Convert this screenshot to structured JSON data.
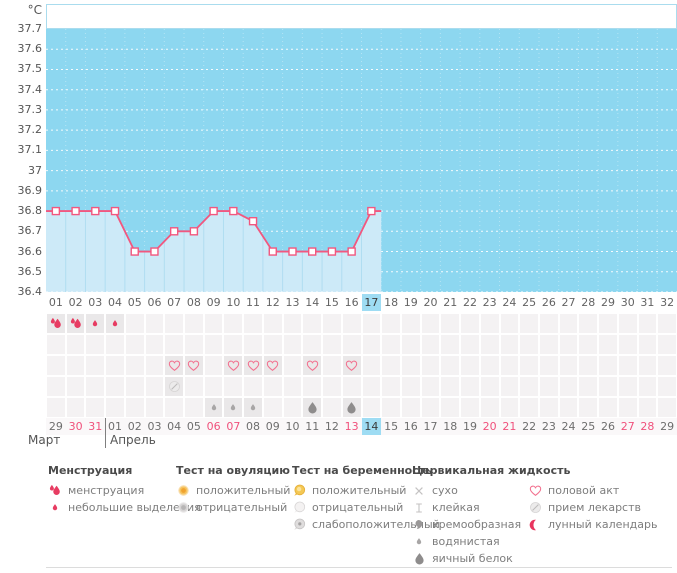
{
  "chart_data": {
    "type": "line",
    "title": "",
    "ylabel": "°C",
    "ylim": [
      36.4,
      37.7
    ],
    "y_ticks": [
      "37.7",
      "37.6",
      "37.5",
      "37.4",
      "37.3",
      "37.2",
      "37.1",
      "37",
      "36.9",
      "36.8",
      "36.7",
      "36.6",
      "36.5",
      "36.4"
    ],
    "x_days_total": 32,
    "cycle_days": [
      "01",
      "02",
      "03",
      "04",
      "05",
      "06",
      "07",
      "08",
      "09",
      "10",
      "11",
      "12",
      "13",
      "14",
      "15",
      "16",
      "17",
      "18",
      "19",
      "20",
      "21",
      "22",
      "23",
      "24",
      "25",
      "26",
      "27",
      "28",
      "29",
      "30",
      "31",
      "32"
    ],
    "today_cycle_day": 17,
    "grid": "dotted-white",
    "legend_position": "none",
    "series": [
      {
        "name": "basal-temperature",
        "x": [
          1,
          2,
          3,
          4,
          5,
          6,
          7,
          8,
          9,
          10,
          11,
          12,
          13,
          14,
          15,
          16,
          17
        ],
        "values": [
          36.8,
          36.8,
          36.8,
          36.8,
          36.6,
          36.6,
          36.7,
          36.7,
          36.8,
          36.8,
          36.75,
          36.6,
          36.6,
          36.6,
          36.6,
          36.6,
          36.8
        ]
      }
    ]
  },
  "colors": {
    "plot_bg": "#8dd7f0",
    "band_fill": "#ffffff",
    "band_border": "#aadcee",
    "area_fill": "#cdeaf8",
    "area_separator": "#b0ddf1",
    "line": "#f2577f",
    "marker_fill": "#ffffff",
    "highlight_day": "#9edcf3",
    "weekend_text": "#f0517c",
    "menses_red": "#e73c62",
    "heart_pink": "#f2718f",
    "moon_red": "#e8345e"
  },
  "icon_grid": {
    "rows": [
      {
        "name": "menstruation",
        "cells": {
          "1": "menses-heavy",
          "2": "menses-heavy",
          "3": "menses-light",
          "4": "menses-light"
        }
      },
      {
        "name": "tests",
        "cells": {}
      },
      {
        "name": "intercourse",
        "cells": {
          "7": "heart",
          "8": "heart",
          "10": "heart",
          "11": "heart",
          "12": "heart",
          "14": "heart",
          "16": "heart"
        }
      },
      {
        "name": "medication",
        "cells": {
          "7": "pill"
        }
      },
      {
        "name": "cervical-fluid",
        "cells": {
          "9": "fluid-watery",
          "10": "fluid-watery",
          "11": "fluid-watery",
          "14": "fluid-eggwhite",
          "16": "fluid-eggwhite"
        }
      }
    ]
  },
  "calendar": {
    "dates": [
      {
        "label": "29",
        "weekend": false,
        "today": false
      },
      {
        "label": "30",
        "weekend": true,
        "today": false
      },
      {
        "label": "31",
        "weekend": true,
        "today": false
      },
      {
        "label": "01",
        "weekend": false,
        "today": false
      },
      {
        "label": "02",
        "weekend": false,
        "today": false
      },
      {
        "label": "03",
        "weekend": false,
        "today": false
      },
      {
        "label": "04",
        "weekend": false,
        "today": false
      },
      {
        "label": "05",
        "weekend": false,
        "today": false
      },
      {
        "label": "06",
        "weekend": true,
        "today": false
      },
      {
        "label": "07",
        "weekend": true,
        "today": false
      },
      {
        "label": "08",
        "weekend": false,
        "today": false
      },
      {
        "label": "09",
        "weekend": false,
        "today": false
      },
      {
        "label": "10",
        "weekend": false,
        "today": false
      },
      {
        "label": "11",
        "weekend": false,
        "today": false
      },
      {
        "label": "12",
        "weekend": false,
        "today": false
      },
      {
        "label": "13",
        "weekend": true,
        "today": false
      },
      {
        "label": "14",
        "weekend": false,
        "today": true
      },
      {
        "label": "15",
        "weekend": false,
        "today": false
      },
      {
        "label": "16",
        "weekend": false,
        "today": false
      },
      {
        "label": "17",
        "weekend": false,
        "today": false
      },
      {
        "label": "18",
        "weekend": false,
        "today": false
      },
      {
        "label": "19",
        "weekend": false,
        "today": false
      },
      {
        "label": "20",
        "weekend": true,
        "today": false
      },
      {
        "label": "21",
        "weekend": true,
        "today": false
      },
      {
        "label": "22",
        "weekend": false,
        "today": false
      },
      {
        "label": "23",
        "weekend": false,
        "today": false
      },
      {
        "label": "24",
        "weekend": false,
        "today": false
      },
      {
        "label": "25",
        "weekend": false,
        "today": false
      },
      {
        "label": "26",
        "weekend": false,
        "today": false
      },
      {
        "label": "27",
        "weekend": true,
        "today": false
      },
      {
        "label": "28",
        "weekend": true,
        "today": false
      },
      {
        "label": "29",
        "weekend": false,
        "today": false
      }
    ],
    "months": [
      {
        "label": "Март",
        "start_col": 1
      },
      {
        "label": "Апрель",
        "start_col": 4
      }
    ],
    "divider_after_col": 3
  },
  "legend": {
    "groups": [
      {
        "title": "Менструация",
        "items": [
          {
            "icon": "menses-heavy",
            "label": "менструация"
          },
          {
            "icon": "menses-light",
            "label": "небольшие выделения"
          }
        ]
      },
      {
        "title": "Тест на овуляцию",
        "items": [
          {
            "icon": "ovul-pos",
            "label": "положительный"
          },
          {
            "icon": "ovul-neg",
            "label": "отрицательный"
          }
        ]
      },
      {
        "title": "Тест на беременность",
        "items": [
          {
            "icon": "preg-pos",
            "label": "положительный"
          },
          {
            "icon": "preg-neg",
            "label": "отрицательный"
          },
          {
            "icon": "preg-weak",
            "label": "слабоположительный"
          }
        ]
      },
      {
        "title": "Цервикальная жидкость",
        "items": [
          {
            "icon": "fluid-dry",
            "label": "сухо"
          },
          {
            "icon": "fluid-sticky",
            "label": "клейкая"
          },
          {
            "icon": "fluid-creamy",
            "label": "кремообразная"
          },
          {
            "icon": "fluid-watery",
            "label": "водянистая"
          },
          {
            "icon": "fluid-eggwhite",
            "label": "яичный белок"
          }
        ]
      },
      {
        "title": "",
        "items": [
          {
            "icon": "heart",
            "label": "половой акт"
          },
          {
            "icon": "pill",
            "label": "прием лекарств"
          },
          {
            "icon": "moon",
            "label": "лунный календарь"
          }
        ]
      }
    ]
  }
}
